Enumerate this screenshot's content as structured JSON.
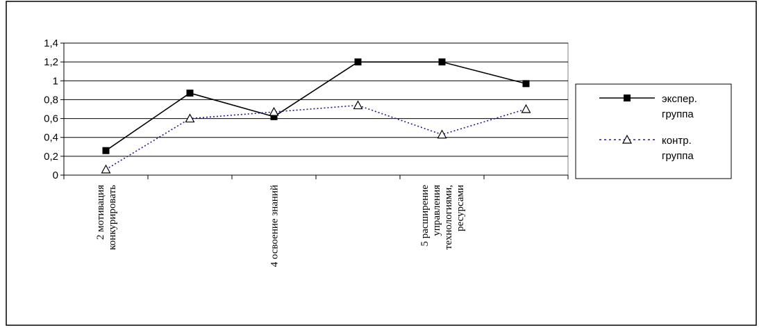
{
  "chart_data": {
    "type": "line",
    "categories": [
      "2 мотивация конкурировать",
      "",
      "4 освоение знаний",
      "",
      "5 расширение управления технологиями, ресурсами",
      ""
    ],
    "category_label_lines": [
      [
        "2 мотивация",
        "конкурировать"
      ],
      [],
      [
        "4 освоение знаний"
      ],
      [],
      [
        "5 расширение",
        "управления",
        "технологиями,",
        "ресурсами"
      ],
      []
    ],
    "series": [
      {
        "name_lines": [
          "экспер.",
          "группа"
        ],
        "values": [
          0.26,
          0.87,
          0.62,
          1.2,
          1.2,
          0.97
        ],
        "color": "#000000",
        "line_style": "solid",
        "marker": "square"
      },
      {
        "name_lines": [
          "контр.",
          "группа"
        ],
        "values": [
          0.06,
          0.6,
          0.67,
          0.74,
          0.43,
          0.7
        ],
        "color": "#1a1a8c",
        "line_style": "dotted",
        "marker": "triangle"
      }
    ],
    "y_ticks": [
      "0",
      "0,2",
      "0,4",
      "0,6",
      "0,8",
      "1",
      "1,2",
      "1,4"
    ],
    "ylim": [
      0,
      1.4
    ],
    "grid": true,
    "legend_position": "right"
  }
}
